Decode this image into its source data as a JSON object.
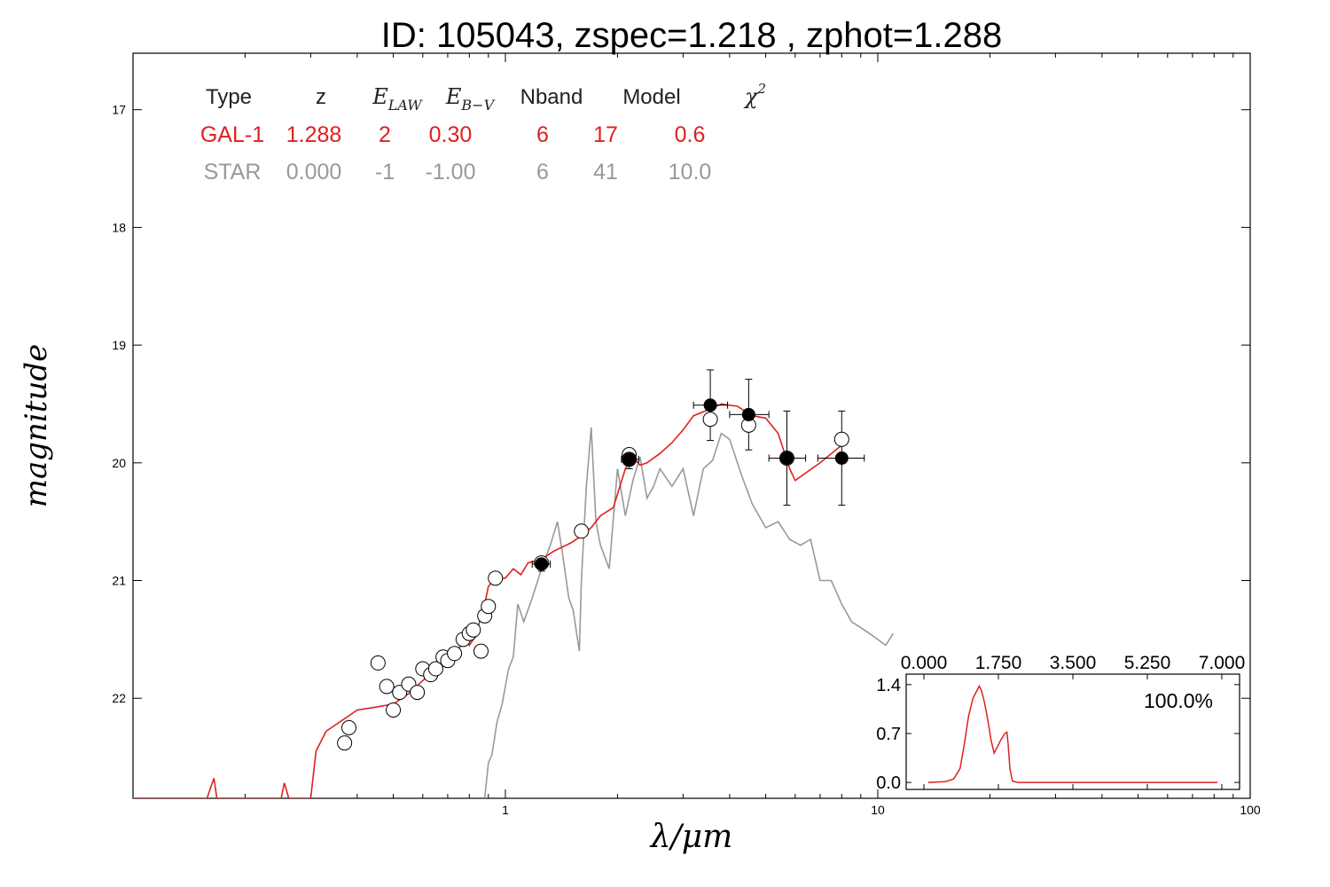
{
  "chart_data": {
    "type": "scatter",
    "title": "ID:  105043, zspec=1.218 , zphot=1.288",
    "xlabel": "λ/μm",
    "ylabel": "magnitude",
    "x_scale": "log",
    "xlim": [
      0.1,
      100
    ],
    "ylim": [
      22.85,
      16.52
    ],
    "x_ticks": [
      1,
      10,
      100
    ],
    "x_tick_labels": [
      "1",
      "10",
      "100"
    ],
    "y_ticks": [
      17,
      18,
      19,
      20,
      21,
      22
    ],
    "y_tick_labels": [
      "17",
      "18",
      "19",
      "20",
      "21",
      "22"
    ],
    "colors": {
      "galaxy": "#e02020",
      "star": "#999999",
      "points": "#000000",
      "header": "#222222"
    },
    "fit_table": {
      "headers": [
        "Type",
        "z",
        "E_LAW",
        "E_B−V",
        "Nband",
        "Model",
        "χ²"
      ],
      "rows": [
        {
          "label": "GAL-1",
          "color": "#e02020",
          "cells": [
            "GAL-1",
            "1.288",
            "2",
            "0.30",
            "6",
            "17",
            "0.6"
          ]
        },
        {
          "label": "STAR",
          "color": "#999999",
          "cells": [
            "STAR",
            "0.000",
            "-1",
            "-1.00",
            "6",
            "41",
            "10.0"
          ]
        }
      ]
    },
    "galaxy_model": {
      "name": "GAL-1",
      "points": [
        [
          0.1,
          22.85
        ],
        [
          0.14,
          22.85
        ],
        [
          0.158,
          22.85
        ],
        [
          0.165,
          22.68
        ],
        [
          0.168,
          22.85
        ],
        [
          0.25,
          22.85
        ],
        [
          0.255,
          22.72
        ],
        [
          0.262,
          22.85
        ],
        [
          0.3,
          22.85
        ],
        [
          0.31,
          22.45
        ],
        [
          0.33,
          22.28
        ],
        [
          0.36,
          22.2
        ],
        [
          0.4,
          22.1
        ],
        [
          0.44,
          22.08
        ],
        [
          0.5,
          22.05
        ],
        [
          0.55,
          21.96
        ],
        [
          0.6,
          21.85
        ],
        [
          0.65,
          21.75
        ],
        [
          0.7,
          21.65
        ],
        [
          0.75,
          21.57
        ],
        [
          0.79,
          21.52
        ],
        [
          0.8,
          21.55
        ],
        [
          0.84,
          21.45
        ],
        [
          0.86,
          21.28
        ],
        [
          0.88,
          21.2
        ],
        [
          0.9,
          21.05
        ],
        [
          0.93,
          21.0
        ],
        [
          1.0,
          20.98
        ],
        [
          1.05,
          20.9
        ],
        [
          1.1,
          20.95
        ],
        [
          1.15,
          20.85
        ],
        [
          1.25,
          20.82
        ],
        [
          1.35,
          20.75
        ],
        [
          1.5,
          20.68
        ],
        [
          1.6,
          20.62
        ],
        [
          1.7,
          20.55
        ],
        [
          1.8,
          20.45
        ],
        [
          1.95,
          20.38
        ],
        [
          2.1,
          20.05
        ],
        [
          2.2,
          19.95
        ],
        [
          2.3,
          20.02
        ],
        [
          2.4,
          20.0
        ],
        [
          2.6,
          19.92
        ],
        [
          2.8,
          19.83
        ],
        [
          3.0,
          19.72
        ],
        [
          3.2,
          19.6
        ],
        [
          3.5,
          19.55
        ],
        [
          3.8,
          19.5
        ],
        [
          4.2,
          19.52
        ],
        [
          4.6,
          19.6
        ],
        [
          5.0,
          19.62
        ],
        [
          5.4,
          19.75
        ],
        [
          5.8,
          20.05
        ],
        [
          6.0,
          20.15
        ],
        [
          7.0,
          20.0
        ],
        [
          8.0,
          19.85
        ]
      ]
    },
    "star_model": {
      "name": "STAR",
      "points": [
        [
          0.88,
          22.85
        ],
        [
          0.9,
          22.55
        ],
        [
          0.92,
          22.48
        ],
        [
          0.95,
          22.2
        ],
        [
          0.98,
          22.05
        ],
        [
          1.02,
          21.75
        ],
        [
          1.05,
          21.65
        ],
        [
          1.08,
          21.2
        ],
        [
          1.12,
          21.35
        ],
        [
          1.18,
          21.15
        ],
        [
          1.25,
          20.9
        ],
        [
          1.32,
          20.7
        ],
        [
          1.38,
          20.5
        ],
        [
          1.42,
          20.75
        ],
        [
          1.48,
          21.15
        ],
        [
          1.52,
          21.25
        ],
        [
          1.58,
          21.6
        ],
        [
          1.6,
          21.0
        ],
        [
          1.65,
          20.2
        ],
        [
          1.7,
          19.7
        ],
        [
          1.75,
          20.5
        ],
        [
          1.8,
          20.7
        ],
        [
          1.9,
          20.9
        ],
        [
          2.0,
          20.05
        ],
        [
          2.1,
          20.45
        ],
        [
          2.2,
          20.15
        ],
        [
          2.3,
          19.95
        ],
        [
          2.4,
          20.3
        ],
        [
          2.5,
          20.2
        ],
        [
          2.6,
          20.05
        ],
        [
          2.8,
          20.2
        ],
        [
          3.0,
          20.05
        ],
        [
          3.2,
          20.45
        ],
        [
          3.4,
          20.05
        ],
        [
          3.6,
          19.98
        ],
        [
          3.8,
          19.75
        ],
        [
          4.0,
          19.8
        ],
        [
          4.3,
          20.1
        ],
        [
          4.6,
          20.35
        ],
        [
          5.0,
          20.55
        ],
        [
          5.4,
          20.5
        ],
        [
          5.8,
          20.65
        ],
        [
          6.2,
          20.7
        ],
        [
          6.6,
          20.65
        ],
        [
          7.0,
          21.0
        ],
        [
          7.5,
          21.0
        ],
        [
          8.0,
          21.2
        ],
        [
          8.5,
          21.35
        ],
        [
          9.0,
          21.4
        ],
        [
          9.5,
          21.45
        ],
        [
          10,
          21.5
        ],
        [
          10.5,
          21.55
        ],
        [
          11,
          21.45
        ]
      ]
    },
    "model_points": [
      [
        0.37,
        22.38
      ],
      [
        0.38,
        22.25
      ],
      [
        0.455,
        21.7
      ],
      [
        0.48,
        21.9
      ],
      [
        0.5,
        22.1
      ],
      [
        0.52,
        21.95
      ],
      [
        0.55,
        21.88
      ],
      [
        0.58,
        21.95
      ],
      [
        0.6,
        21.75
      ],
      [
        0.63,
        21.8
      ],
      [
        0.65,
        21.75
      ],
      [
        0.68,
        21.65
      ],
      [
        0.7,
        21.68
      ],
      [
        0.73,
        21.62
      ],
      [
        0.77,
        21.5
      ],
      [
        0.8,
        21.45
      ],
      [
        0.82,
        21.42
      ],
      [
        0.86,
        21.6
      ],
      [
        0.88,
        21.3
      ],
      [
        0.9,
        21.22
      ],
      [
        0.94,
        20.98
      ],
      [
        1.25,
        20.85
      ],
      [
        1.6,
        20.58
      ],
      [
        2.15,
        19.93
      ],
      [
        2.15,
        19.97
      ],
      [
        3.55,
        19.63
      ],
      [
        4.5,
        19.68
      ],
      [
        5.7,
        19.96
      ],
      [
        8.0,
        19.8
      ]
    ],
    "observed_points": [
      {
        "x": 1.25,
        "y": 20.86,
        "xerr": [
          1.18,
          1.32
        ],
        "yerr": 0.06
      },
      {
        "x": 2.15,
        "y": 19.97,
        "xerr": [
          2.05,
          2.28
        ],
        "yerr": 0.08
      },
      {
        "x": 3.55,
        "y": 19.51,
        "xerr": [
          3.2,
          3.95
        ],
        "yerr": 0.3
      },
      {
        "x": 4.5,
        "y": 19.59,
        "xerr": [
          4.0,
          5.1
        ],
        "yerr": 0.3
      },
      {
        "x": 5.7,
        "y": 19.96,
        "xerr": [
          5.1,
          6.4
        ],
        "yerr": 0.4
      },
      {
        "x": 8.0,
        "y": 19.96,
        "xerr": [
          6.9,
          9.2
        ],
        "yerr": 0.4
      }
    ],
    "inset": {
      "type": "line",
      "percent_label": "100.0%",
      "xlim": [
        0,
        7
      ],
      "ylim": [
        -0.1,
        1.55
      ],
      "x_tick_labels": [
        "0.000",
        "1.750",
        "3.500",
        "5.250",
        "7.000"
      ],
      "x_ticks": [
        0,
        1.75,
        3.5,
        5.25,
        7
      ],
      "y_tick_labels": [
        "0.0",
        "0.7",
        "1.4"
      ],
      "y_ticks": [
        0,
        0.7,
        1.4
      ],
      "points": [
        [
          0.1,
          0.0
        ],
        [
          0.5,
          0.01
        ],
        [
          0.7,
          0.05
        ],
        [
          0.85,
          0.2
        ],
        [
          0.95,
          0.55
        ],
        [
          1.05,
          0.95
        ],
        [
          1.15,
          1.2
        ],
        [
          1.25,
          1.32
        ],
        [
          1.3,
          1.38
        ],
        [
          1.35,
          1.32
        ],
        [
          1.42,
          1.15
        ],
        [
          1.5,
          0.9
        ],
        [
          1.58,
          0.6
        ],
        [
          1.65,
          0.42
        ],
        [
          1.72,
          0.5
        ],
        [
          1.8,
          0.6
        ],
        [
          1.9,
          0.7
        ],
        [
          1.95,
          0.72
        ],
        [
          1.98,
          0.55
        ],
        [
          2.02,
          0.2
        ],
        [
          2.08,
          0.02
        ],
        [
          2.2,
          0.0
        ],
        [
          3.5,
          0.0
        ],
        [
          5.25,
          0.0
        ],
        [
          6.9,
          0.0
        ]
      ]
    }
  }
}
